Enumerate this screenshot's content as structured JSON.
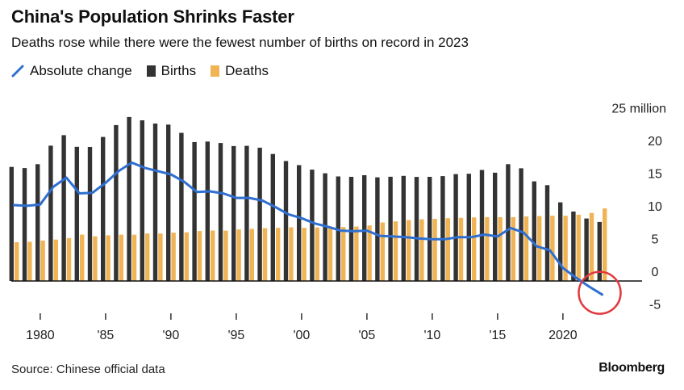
{
  "title": "China's Population Shrinks Faster",
  "subtitle": "Deaths rose while there were the fewest number of births on record in 2023",
  "source": "Source: Chinese official data",
  "brand": "Bloomberg",
  "colors": {
    "births": "#333333",
    "deaths": "#f0b455",
    "absolute_change": "#2f6fd1",
    "highlight_circle": "#e0393e",
    "axis": "#111111"
  },
  "chart_data": {
    "type": "bar",
    "units_label": "25 million",
    "ylim": [
      -5,
      25
    ],
    "y_ticks": [
      25,
      20,
      15,
      10,
      5,
      0,
      -5
    ],
    "y_tick_labels": [
      "25 million",
      "20",
      "15",
      "10",
      "5",
      "0",
      "-5"
    ],
    "x_tick_labels": [
      {
        "year": 1980,
        "label": "1980"
      },
      {
        "year": 1985,
        "label": "'85"
      },
      {
        "year": 1990,
        "label": "'90"
      },
      {
        "year": 1995,
        "label": "'95"
      },
      {
        "year": 2000,
        "label": "'00"
      },
      {
        "year": 2005,
        "label": "'05"
      },
      {
        "year": 2010,
        "label": "'10"
      },
      {
        "year": 2015,
        "label": "'15"
      },
      {
        "year": 2020,
        "label": "2020"
      }
    ],
    "years": [
      1978,
      1979,
      1980,
      1981,
      1982,
      1983,
      1984,
      1985,
      1986,
      1987,
      1988,
      1989,
      1990,
      1991,
      1992,
      1993,
      1994,
      1995,
      1996,
      1997,
      1998,
      1999,
      2000,
      2001,
      2002,
      2003,
      2004,
      2005,
      2006,
      2007,
      2008,
      2009,
      2010,
      2011,
      2012,
      2013,
      2014,
      2015,
      2016,
      2017,
      2018,
      2019,
      2020,
      2021,
      2022,
      2023
    ],
    "series": [
      {
        "name": "Births",
        "kind": "bar",
        "values": [
          17.45,
          17.27,
          17.87,
          20.69,
          22.3,
          20.52,
          20.5,
          22.02,
          23.84,
          25.08,
          24.57,
          24.07,
          23.91,
          22.65,
          21.25,
          21.32,
          21.1,
          20.63,
          20.67,
          20.38,
          19.42,
          18.34,
          17.71,
          17.02,
          16.47,
          15.99,
          15.93,
          16.17,
          15.85,
          15.94,
          16.08,
          15.91,
          15.92,
          16.04,
          16.35,
          16.4,
          16.97,
          16.55,
          17.86,
          17.23,
          15.23,
          14.65,
          12.02,
          10.62,
          9.56,
          9.02
        ]
      },
      {
        "name": "Deaths",
        "kind": "bar",
        "values": [
          5.92,
          6.0,
          6.19,
          6.33,
          6.56,
          7.09,
          6.83,
          6.99,
          7.08,
          7.08,
          7.26,
          7.26,
          7.39,
          7.44,
          7.64,
          7.71,
          7.7,
          7.88,
          7.96,
          8.08,
          8.14,
          8.21,
          8.14,
          8.18,
          8.26,
          8.26,
          8.32,
          8.49,
          8.94,
          9.11,
          9.31,
          9.43,
          9.51,
          9.6,
          9.66,
          9.72,
          9.77,
          9.75,
          9.77,
          9.86,
          9.93,
          9.98,
          9.97,
          10.14,
          10.41,
          11.1
        ]
      },
      {
        "name": "Absolute change",
        "kind": "line",
        "values": [
          11.6,
          11.5,
          11.7,
          14.4,
          15.8,
          13.4,
          13.5,
          15.0,
          16.8,
          18.1,
          17.3,
          16.8,
          16.3,
          15.2,
          13.6,
          13.7,
          13.4,
          12.7,
          12.7,
          12.3,
          11.3,
          10.2,
          9.6,
          8.8,
          8.3,
          7.7,
          7.6,
          7.7,
          6.9,
          6.8,
          6.7,
          6.5,
          6.4,
          6.4,
          6.7,
          6.7,
          7.1,
          6.8,
          8.1,
          7.4,
          5.3,
          4.7,
          2.0,
          0.5,
          -0.85,
          -2.08
        ]
      }
    ]
  }
}
